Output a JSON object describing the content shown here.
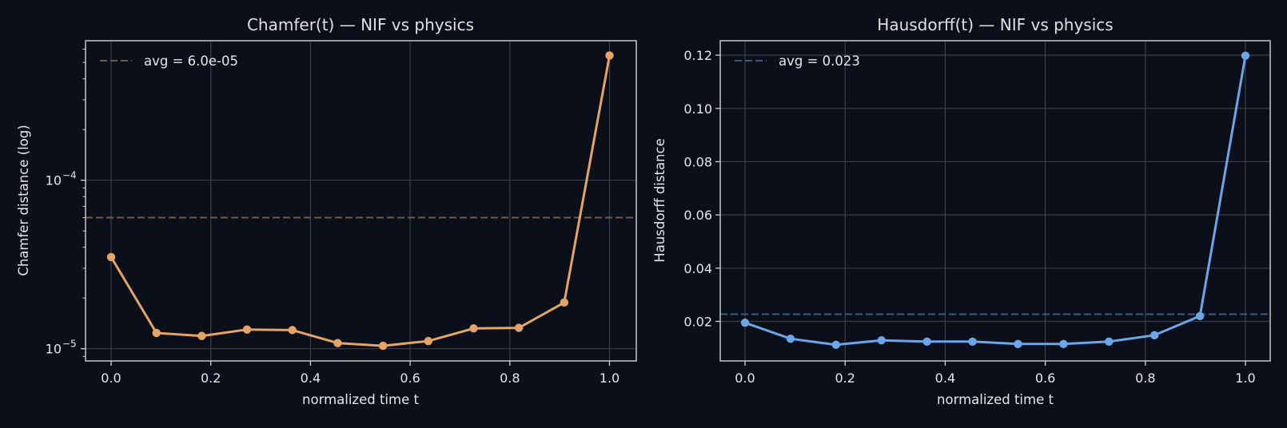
{
  "colors": {
    "background": "#0b0f19",
    "frame": "#d2d2d2",
    "grid": "#3a3f4b",
    "chamfer_line": "#e5a465",
    "chamfer_avg": "#6e5a46",
    "hausdorff_line": "#6aa6e8",
    "hausdorff_avg": "#3d5b82"
  },
  "chart_data": [
    {
      "type": "line",
      "title": "Chamfer(t) — NIF vs physics",
      "xlabel": "normalized time t",
      "ylabel": "Chamfer distance (log)",
      "yscale": "log",
      "xlim": [
        -0.05,
        1.05
      ],
      "ylim": [
        8.5e-06,
        0.00066
      ],
      "x_ticks": [
        "0.0",
        "0.2",
        "0.4",
        "0.6",
        "0.8",
        "1.0"
      ],
      "y_ticks": [
        {
          "value": 1e-05,
          "base": "10",
          "exp": "−5"
        },
        {
          "value": 0.0001,
          "base": "10",
          "exp": "−4"
        }
      ],
      "grid": true,
      "legend": {
        "position": "upper left",
        "entries": [
          "avg = 6.0e-05"
        ]
      },
      "avg": 6e-05,
      "series": [
        {
          "name": "Chamfer",
          "x": [
            0.0,
            0.0909,
            0.1818,
            0.2727,
            0.3636,
            0.4545,
            0.5455,
            0.6364,
            0.7273,
            0.8182,
            0.9091,
            1.0
          ],
          "values": [
            3.5e-05,
            1.24e-05,
            1.19e-05,
            1.3e-05,
            1.29e-05,
            1.08e-05,
            1.04e-05,
            1.11e-05,
            1.32e-05,
            1.33e-05,
            1.88e-05,
            0.00055
          ]
        }
      ]
    },
    {
      "type": "line",
      "title": "Hausdorff(t) — NIF vs physics",
      "xlabel": "normalized time t",
      "ylabel": "Hausdorff distance",
      "yscale": "linear",
      "xlim": [
        -0.05,
        1.05
      ],
      "ylim": [
        0.0053,
        0.1255
      ],
      "x_ticks": [
        "0.0",
        "0.2",
        "0.4",
        "0.6",
        "0.8",
        "1.0"
      ],
      "y_ticks": [
        "0.02",
        "0.04",
        "0.06",
        "0.08",
        "0.10",
        "0.12"
      ],
      "grid": true,
      "legend": {
        "position": "upper left",
        "entries": [
          "avg = 0.023"
        ]
      },
      "avg": 0.0227,
      "series": [
        {
          "name": "Hausdorff",
          "x": [
            0.0,
            0.0909,
            0.1818,
            0.2727,
            0.3636,
            0.4545,
            0.5455,
            0.6364,
            0.7273,
            0.8182,
            0.9091,
            1.0
          ],
          "values": [
            0.0195,
            0.0135,
            0.0112,
            0.0129,
            0.0124,
            0.0124,
            0.0115,
            0.0115,
            0.0124,
            0.0148,
            0.022,
            0.1198
          ]
        }
      ]
    }
  ]
}
